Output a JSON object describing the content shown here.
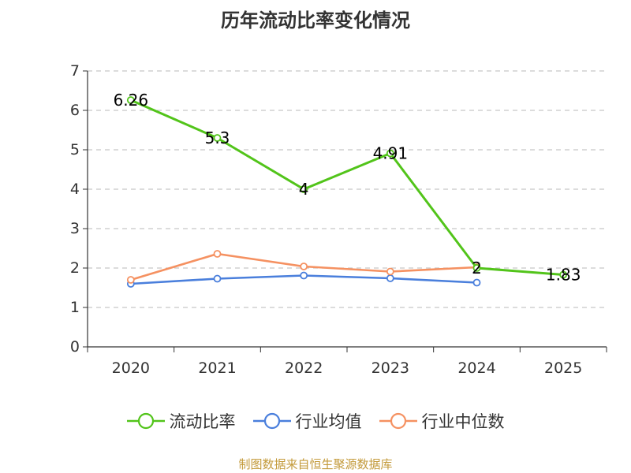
{
  "chart_data": {
    "type": "line",
    "title": "历年流动比率变化情况",
    "categories": [
      "2020",
      "2021",
      "2022",
      "2023",
      "2024",
      "2025"
    ],
    "ylim": [
      0,
      7
    ],
    "yticks": [
      0,
      1,
      2,
      3,
      4,
      5,
      6,
      7
    ],
    "grid": true,
    "legend_position": "bottom",
    "series": [
      {
        "name": "流动比率",
        "color": "#52c41a",
        "values": [
          6.26,
          5.3,
          4,
          4.91,
          2,
          1.83
        ],
        "labels": [
          "6.26",
          "5.3",
          "4",
          "4.91",
          "2",
          "1.83"
        ]
      },
      {
        "name": "行业均值",
        "color": "#4a7fdc",
        "values": [
          1.6,
          1.73,
          1.81,
          1.74,
          1.63,
          null
        ]
      },
      {
        "name": "行业中位数",
        "color": "#f59161",
        "values": [
          1.7,
          2.36,
          2.04,
          1.91,
          2.02,
          null
        ]
      }
    ]
  },
  "source": "制图数据来自恒生聚源数据库"
}
